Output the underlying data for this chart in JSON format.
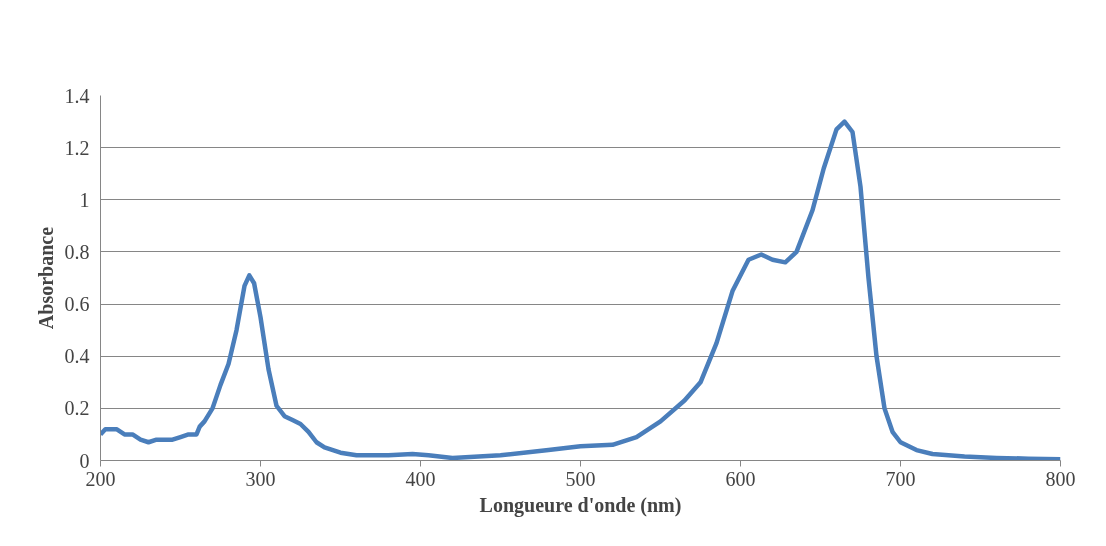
{
  "chart_data": {
    "type": "line",
    "xlabel": "Longueure d'onde (nm)",
    "ylabel": "Absorbance",
    "xlim": [
      200,
      800
    ],
    "xticks": [
      200,
      300,
      400,
      500,
      600,
      700,
      800
    ],
    "ylim": [
      0,
      1.4
    ],
    "yticks": [
      0,
      0.2,
      0.4,
      0.6,
      0.8,
      1,
      1.2,
      1.4
    ],
    "grid": "y",
    "marker": "none",
    "line_style": "solid",
    "series": [
      {
        "color": "#4a7ebb",
        "x": [
          200,
          203,
          210,
          215,
          220,
          225,
          230,
          235,
          240,
          245,
          250,
          255,
          260,
          262,
          265,
          270,
          275,
          280,
          285,
          290,
          293,
          296,
          300,
          305,
          310,
          315,
          320,
          325,
          330,
          335,
          340,
          350,
          360,
          380,
          395,
          405,
          420,
          450,
          480,
          500,
          520,
          535,
          550,
          565,
          575,
          585,
          595,
          605,
          613,
          620,
          628,
          635,
          645,
          652,
          660,
          665,
          670,
          675,
          680,
          685,
          690,
          695,
          700,
          710,
          720,
          740,
          760,
          780,
          800
        ],
        "values": [
          0.1,
          0.12,
          0.12,
          0.1,
          0.1,
          0.08,
          0.07,
          0.08,
          0.08,
          0.08,
          0.09,
          0.1,
          0.1,
          0.13,
          0.15,
          0.2,
          0.29,
          0.37,
          0.5,
          0.67,
          0.71,
          0.68,
          0.55,
          0.35,
          0.21,
          0.17,
          0.155,
          0.14,
          0.11,
          0.07,
          0.05,
          0.03,
          0.02,
          0.02,
          0.025,
          0.02,
          0.01,
          0.02,
          0.04,
          0.055,
          0.06,
          0.09,
          0.15,
          0.23,
          0.3,
          0.45,
          0.65,
          0.77,
          0.79,
          0.77,
          0.76,
          0.8,
          0.96,
          1.12,
          1.27,
          1.3,
          1.26,
          1.05,
          0.7,
          0.4,
          0.2,
          0.11,
          0.07,
          0.04,
          0.025,
          0.015,
          0.01,
          0.007,
          0.005
        ]
      }
    ]
  }
}
